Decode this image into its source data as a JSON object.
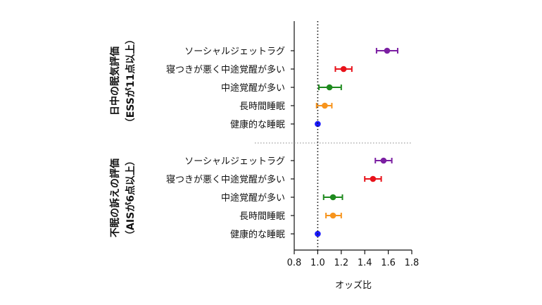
{
  "chart_data": {
    "type": "forest",
    "xlabel": "オッズ比",
    "xlim": [
      0.8,
      1.8
    ],
    "x_ticks": [
      "0.8",
      "1.0",
      "1.2",
      "1.4",
      "1.6",
      "1.8"
    ],
    "reference_line": 1.0,
    "legend": "none",
    "grid": false,
    "groups": [
      {
        "title_line1": "日中の眠気評価",
        "title_line2": "（ESSが11点以上）",
        "rows": [
          {
            "label": "ソーシャルジェットラグ",
            "value": 1.59,
            "low": 1.5,
            "high": 1.68,
            "color": "#7b1fa2"
          },
          {
            "label": "寝つきが悪く中途覚醒が多い",
            "value": 1.22,
            "low": 1.15,
            "high": 1.29,
            "color": "#e8121a"
          },
          {
            "label": "中途覚醒が多い",
            "value": 1.1,
            "low": 1.01,
            "high": 1.2,
            "color": "#1e8a1e"
          },
          {
            "label": "長時間睡眠",
            "value": 1.06,
            "low": 0.99,
            "high": 1.12,
            "color": "#f7941d"
          },
          {
            "label": "健康的な睡眠",
            "value": 1.0,
            "low": 1.0,
            "high": 1.0,
            "color": "#1a1aff"
          }
        ]
      },
      {
        "title_line1": "不眠の訴えの評価",
        "title_line2": "（AISが6点以上）",
        "rows": [
          {
            "label": "ソーシャルジェットラグ",
            "value": 1.56,
            "low": 1.49,
            "high": 1.63,
            "color": "#7b1fa2"
          },
          {
            "label": "寝つきが悪く中途覚醒が多い",
            "value": 1.47,
            "low": 1.4,
            "high": 1.54,
            "color": "#e8121a"
          },
          {
            "label": "中途覚醒が多い",
            "value": 1.13,
            "low": 1.05,
            "high": 1.21,
            "color": "#1e8a1e"
          },
          {
            "label": "長時間睡眠",
            "value": 1.13,
            "low": 1.07,
            "high": 1.2,
            "color": "#f7941d"
          },
          {
            "label": "健康的な睡眠",
            "value": 1.0,
            "low": 1.0,
            "high": 1.0,
            "color": "#1a1aff"
          }
        ]
      }
    ]
  }
}
